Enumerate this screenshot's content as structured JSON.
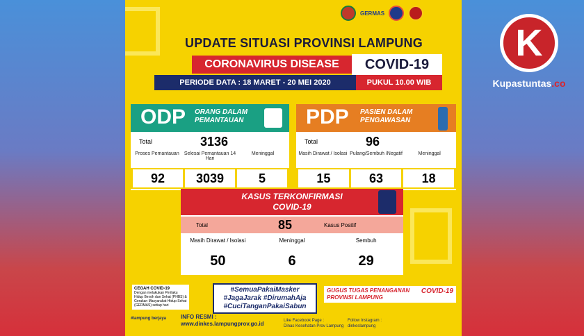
{
  "poster": {
    "title": "UPDATE SITUASI PROVINSI LAMPUNG",
    "disease": "CORONAVIRUS DISEASE",
    "covid": "COVID-19",
    "periode": "PERIODE DATA : 18 MARET - 20 MEI 2020",
    "pukul": "PUKUL 10.00 WIB",
    "germas": "GERMAS"
  },
  "odp": {
    "abbr": "ODP",
    "full_line1": "ORANG DALAM",
    "full_line2": "PEMANTAUAN",
    "total_label": "Total",
    "total": "3136",
    "cols": [
      "Proses Pemantauan",
      "Selesai Pemantauan 14 Hari",
      "Meninggal"
    ],
    "vals": [
      "92",
      "3039",
      "5"
    ]
  },
  "pdp": {
    "abbr": "PDP",
    "full_line1": "PASIEN DALAM",
    "full_line2": "PENGAWASAN",
    "total_label": "Total",
    "total": "96",
    "cols": [
      "Masih Dirawat / Isolasi",
      "Pulang/Sembuh /Negatif",
      "Meninggal"
    ],
    "vals": [
      "15",
      "63",
      "18"
    ]
  },
  "kasus": {
    "head1": "KASUS TERKONFIRMASI",
    "head2": "COVID-19",
    "total_label": "Total",
    "total": "85",
    "positif_label": "Kasus Positif",
    "cols": [
      "Masih Dirawat / Isolasi",
      "Meninggal",
      "Sembuh"
    ],
    "vals": [
      "50",
      "6",
      "29"
    ]
  },
  "footer": {
    "cegah_title": "CEGAH COVID-19",
    "cegah_text": "Dengan melakukan Perilaku Hidup Bersih dan Sehat (PHBS) & Gerakan Masyarakat Hidup Sehat (GERMAS) setiap hari",
    "tags": [
      "#SemuaPakaiMasker",
      "#JagaJarak #DirumahAja",
      "#CuciTanganPakaiSabun"
    ],
    "gugus": "GUGUS TUGAS PENANGANAN",
    "gugus_cv": "COVID-19",
    "gugus_prov": "PROVINSI LAMPUNG",
    "info_title": "INFO RESMI :",
    "info_url": "www.dinkes.lampungprov.go.id",
    "fb_label": "Like Facebook Page :",
    "fb_name": "Dinas Kesehatan Prov Lampung",
    "ig_label": "Follow Instagram :",
    "ig_name": "dinkeslampung",
    "lampung_logo": "#lampung berjaya"
  },
  "brand": {
    "letter": "K",
    "name": "Kupastuntas",
    "tld": ".co"
  },
  "colors": {
    "poster_bg": "#f6d200",
    "odp": "#1aa083",
    "pdp": "#e67e22",
    "red": "#d7262f",
    "navy": "#1c2c6a"
  }
}
